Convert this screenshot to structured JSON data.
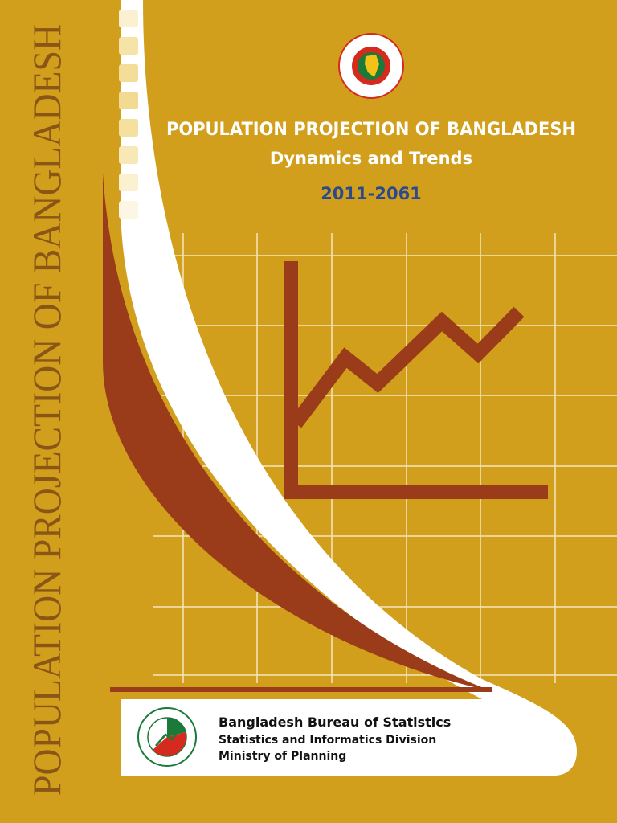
{
  "spine": {
    "title": "POPULATION PROJECTION OF BANGLADESH"
  },
  "header": {
    "title": "POPULATION PROJECTION OF BANGLADESH",
    "subtitle": "Dynamics and Trends",
    "years": "2011-2061"
  },
  "footer": {
    "lines": [
      "Bangladesh Bureau of Statistics",
      "Statistics and Informatics Division",
      "Ministry of Planning"
    ]
  }
}
